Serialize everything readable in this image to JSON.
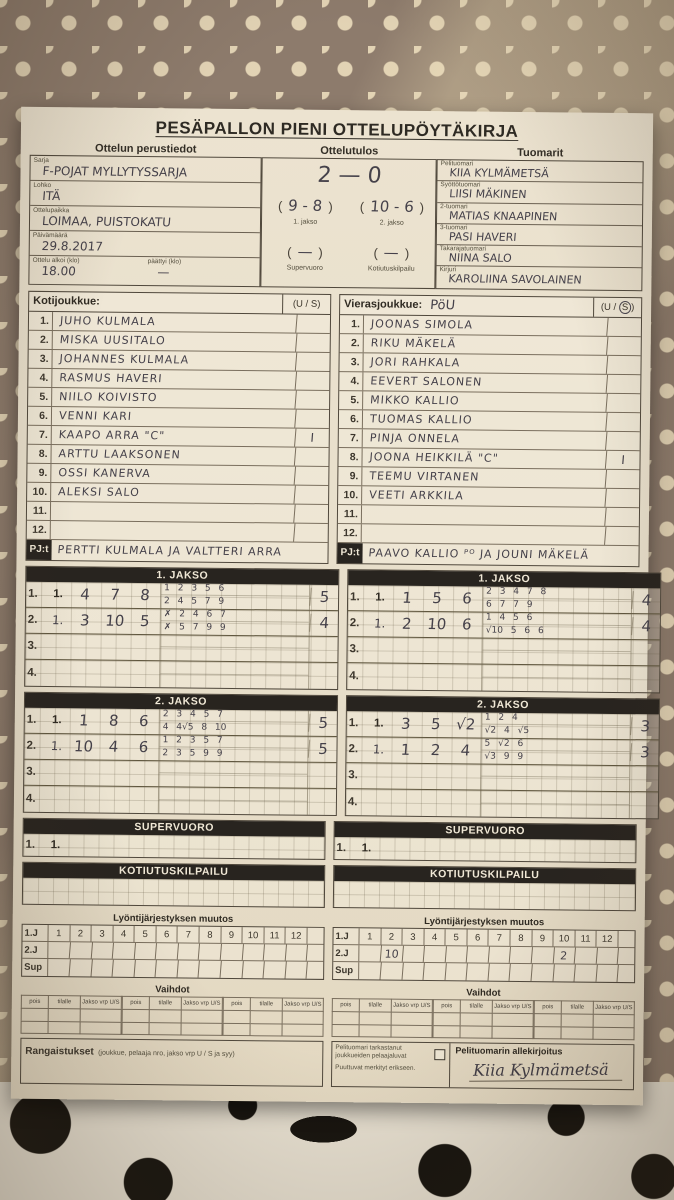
{
  "title": "PESÄPALLON PIENI OTTELUPÖYTÄKIRJA",
  "sections": {
    "basic": "Ottelun perustiedot",
    "result": "Ottelutulos",
    "referees": "Tuomarit"
  },
  "basic_info": {
    "sarja_label": "Sarja",
    "sarja": "F-POJAT MYLLYTYSSARJA",
    "lohko_label": "Lohko",
    "lohko": "ITÄ",
    "paikka_label": "Ottelupaikka",
    "paikka": "LOIMAA, PUISTOKATU",
    "pvm_label": "Päivämäärä",
    "pvm": "29.8.2017",
    "alkoi_label": "Ottelu alkoi (klo)",
    "alkoi": "18.00",
    "paattyi_label": "päättyi (klo)",
    "paattyi": "—"
  },
  "result": {
    "final": "2 — 0",
    "periods": [
      {
        "value": "9 - 8",
        "label": "1. jakso"
      },
      {
        "value": "10 - 6",
        "label": "2. jakso"
      },
      {
        "value": "—",
        "label": "Supervuoro"
      },
      {
        "value": "—",
        "label": "Kotiutuskilpailu"
      }
    ]
  },
  "referees": [
    {
      "label": "Pelituomari",
      "name": "KIIA KYLMÄMETSÄ"
    },
    {
      "label": "Syöttötuomari",
      "name": "LIISI MÄKINEN"
    },
    {
      "label": "2-tuomari",
      "name": "MATIAS KNAAPINEN"
    },
    {
      "label": "3-tuomari",
      "name": "PASI HAVERI"
    },
    {
      "label": "Takarajatuomari",
      "name": "NIINA SALO"
    },
    {
      "label": "Kirjuri",
      "name": "KAROLIINA SAVOLAINEN"
    }
  ],
  "teams": {
    "us_header_prefix": "(U / ",
    "us_header_s": "S",
    "us_header_suffix": ")",
    "home": {
      "label": "Kotijoukkue:",
      "name": "",
      "pj_label": "PJ:t",
      "pj": "PERTTI KULMALA JA VALTTERI ARRA",
      "players": [
        {
          "no": "1.",
          "name": "JUHO KULMALA",
          "us": ""
        },
        {
          "no": "2.",
          "name": "MISKA UUSITALO",
          "us": ""
        },
        {
          "no": "3.",
          "name": "JOHANNES KULMALA",
          "us": ""
        },
        {
          "no": "4.",
          "name": "RASMUS HAVERI",
          "us": ""
        },
        {
          "no": "5.",
          "name": "NIILO KOIVISTO",
          "us": ""
        },
        {
          "no": "6.",
          "name": "VENNI KARI",
          "us": ""
        },
        {
          "no": "7.",
          "name": "KAAPO ARRA   \"C\"",
          "us": "I"
        },
        {
          "no": "8.",
          "name": "ARTTU LAAKSONEN",
          "us": ""
        },
        {
          "no": "9.",
          "name": "OSSI KANERVA",
          "us": ""
        },
        {
          "no": "10.",
          "name": "ALEKSI SALO",
          "us": ""
        },
        {
          "no": "11.",
          "name": "",
          "us": ""
        },
        {
          "no": "12.",
          "name": "",
          "us": ""
        }
      ]
    },
    "away": {
      "label": "Vierasjoukkue:",
      "name": "PöU",
      "pj_label": "PJ:t",
      "pj": "PAAVO KALLIO ᴾᴼ JA JOUNI MÄKELÄ",
      "players": [
        {
          "no": "1.",
          "name": "JOONAS SIMOLA",
          "us": ""
        },
        {
          "no": "2.",
          "name": "RIKU MÄKELÄ",
          "us": ""
        },
        {
          "no": "3.",
          "name": "JORI RAHKALA",
          "us": ""
        },
        {
          "no": "4.",
          "name": "EEVERT SALONEN",
          "us": ""
        },
        {
          "no": "5.",
          "name": "MIKKO KALLIO",
          "us": ""
        },
        {
          "no": "6.",
          "name": "TUOMAS KALLIO",
          "us": ""
        },
        {
          "no": "7.",
          "name": "PINJA ONNELA",
          "us": ""
        },
        {
          "no": "8.",
          "name": "JOONA HEIKKILÄ  \"C\"",
          "us": "I"
        },
        {
          "no": "9.",
          "name": "TEEMU VIRTANEN",
          "us": ""
        },
        {
          "no": "10.",
          "name": "VEETI ARKKILA",
          "us": ""
        },
        {
          "no": "11.",
          "name": "",
          "us": ""
        },
        {
          "no": "12.",
          "name": "",
          "us": ""
        }
      ]
    }
  },
  "score": {
    "jakso1_title": "1. JAKSO",
    "jakso2_title": "2. JAKSO",
    "supervuoro_title": "SUPERVUORO",
    "kotiutus_title": "KOTIUTUSKILPAILU",
    "row_labels": [
      "1.",
      "2.",
      "3.",
      "4."
    ],
    "home": {
      "jakso1": [
        {
          "lp": true,
          "lead": "1.",
          "big": [
            "4",
            "7",
            "8"
          ],
          "top": "1 2 3 5 6",
          "bot": "2 4 5 7 9",
          "total": "5"
        },
        {
          "lp": false,
          "lead": "1.",
          "big": [
            "3",
            "10",
            "5"
          ],
          "top": "✗ 2 4 6 7",
          "bot": "✗ 5 7 9 9",
          "total": "4"
        },
        {},
        {}
      ],
      "jakso2": [
        {
          "lp": true,
          "lead": "1.",
          "big": [
            "1",
            "8",
            "6"
          ],
          "top": "2 3 4 5 7",
          "bot": "4 4√5 8 10",
          "total": "5"
        },
        {
          "lp": false,
          "lead": "1.",
          "big": [
            "10",
            "4",
            "6"
          ],
          "top": "1 2 3 5 7",
          "bot": "2 3 5 9 9",
          "total": "5"
        },
        {},
        {}
      ],
      "supervuoro_lead": [
        "1.",
        "1."
      ]
    },
    "away": {
      "jakso1": [
        {
          "lp": true,
          "lead": "1.",
          "big": [
            "1",
            "5",
            "6"
          ],
          "top": "2 3 4 7 8",
          "bot": "6 7 7 9",
          "total": "4"
        },
        {
          "lp": false,
          "lead": "1.",
          "big": [
            "2",
            "10",
            "6"
          ],
          "top": "1 4 5 6",
          "bot": "√10 5 6 6",
          "total": "4"
        },
        {},
        {}
      ],
      "jakso2": [
        {
          "lp": true,
          "lead": "1.",
          "big": [
            "3",
            "5",
            "√2"
          ],
          "top": "1 2 4",
          "bot": "√2 4 √5",
          "total": "3"
        },
        {
          "lp": false,
          "lead": "1.",
          "big": [
            "1",
            "2",
            "4"
          ],
          "top": "5 √2 6",
          "bot": "√3 9 9",
          "total": "3"
        },
        {},
        {}
      ],
      "supervuoro_lead": [
        "1.",
        "1."
      ]
    }
  },
  "batting": {
    "title": "Lyöntijärjestyksen muutos",
    "row_labels": [
      "1.J",
      "2.J",
      "Sup"
    ],
    "cols": [
      "1",
      "2",
      "3",
      "4",
      "5",
      "6",
      "7",
      "8",
      "9",
      "10",
      "11",
      "12"
    ],
    "home_values": {
      "2.J": {},
      "Sup": {}
    },
    "away_values": {
      "2.J": {
        "2": "10",
        "10": "2"
      },
      "Sup": {}
    }
  },
  "vaihdot": {
    "title": "Vaihdot",
    "cols": [
      "pois",
      "tilalle",
      "Jakso vrp U/S"
    ]
  },
  "footer": {
    "rangaistukset_bold": "Rangaistukset",
    "rangaistukset_rest": "(joukkue, pelaaja nro, jakso vrp U / S ja syy)",
    "check_line1": "Pelituomari tarkastanut",
    "check_line2": "joukkueiden pelaajaluvat",
    "check_line3": "Puuttuvat merkityt erikseen.",
    "signature_label": "Pelituomarin allekirjoitus",
    "signature": "Kiia Kylmämetsä"
  }
}
